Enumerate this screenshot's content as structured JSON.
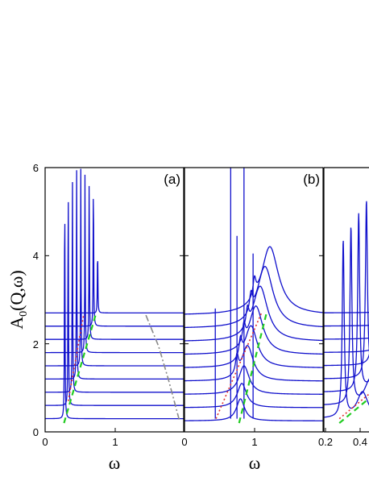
{
  "chart_data": {
    "type": "line",
    "y_axis": {
      "label_main": "A",
      "label_sub": "0",
      "label_rest": "(Q,ω)",
      "ylim": [
        0,
        6
      ],
      "ticks": [
        0,
        2,
        4,
        6
      ],
      "tick_labels": [
        "0",
        "2",
        "4",
        "6"
      ]
    },
    "panels": [
      {
        "label": "(a)",
        "xlabel": "ω",
        "xlim": [
          0,
          1.98
        ],
        "ticks": [
          0,
          1
        ],
        "tick_labels": [
          "0",
          "1"
        ],
        "series_color": "#1010cc",
        "offsets": [
          0.3,
          0.6,
          0.9,
          1.2,
          1.5,
          1.8,
          2.1,
          2.4,
          2.7
        ],
        "peak_positions": [
          0.28,
          0.33,
          0.39,
          0.45,
          0.51,
          0.57,
          0.63,
          0.69,
          0.75
        ],
        "peak_heights": [
          6,
          6,
          6,
          6,
          6,
          6,
          6,
          6,
          4.3
        ],
        "green_dashed": {
          "color": "#22cc22",
          "x": [
            0.27,
            0.72
          ],
          "y": [
            0.2,
            2.65
          ]
        },
        "red_dotted": {
          "color": "#e03030",
          "x": [
            0.33,
            0.55
          ],
          "y": [
            0.7,
            2.65
          ]
        },
        "gray_dashdot": {
          "color": "#888888",
          "x": [
            1.44,
            1.62,
            1.76,
            1.92
          ],
          "y": [
            2.65,
            1.95,
            1.2,
            0.25
          ]
        }
      },
      {
        "label": "(b)",
        "xlabel": "ω",
        "xlim": [
          0,
          1.98
        ],
        "ticks": [
          0,
          1
        ],
        "tick_labels": [
          "0",
          "1"
        ],
        "series_color": "#1010cc",
        "offsets": [
          0.3,
          0.6,
          0.9,
          1.2,
          1.5,
          1.8,
          2.1,
          2.4,
          2.7
        ],
        "peak_positions": [
          0.8,
          0.82,
          0.85,
          0.9,
          0.95,
          1.02,
          1.08,
          1.15,
          1.22
        ],
        "peak_amplitudes": [
          0.5,
          0.55,
          0.65,
          0.8,
          0.95,
          1.1,
          1.25,
          1.4,
          1.55
        ],
        "sharp_lines": [
          {
            "x": 0.44,
            "top": 2.8
          },
          {
            "x": 0.66,
            "top": 6
          },
          {
            "x": 0.75,
            "top": 4.45
          },
          {
            "x": 0.85,
            "top": 6
          },
          {
            "x": 0.98,
            "top": 4.05
          }
        ],
        "green_dashed": {
          "color": "#22cc22",
          "x": [
            0.78,
            1.18
          ],
          "y": [
            0.2,
            2.75
          ]
        },
        "red_dotted": {
          "color": "#e03030",
          "x": [
            0.45,
            1.1
          ],
          "y": [
            0.3,
            2.7
          ]
        }
      },
      {
        "label": "",
        "xlabel": "",
        "xlim": [
          0.2,
          0.5
        ],
        "ticks": [
          0.2,
          0.4
        ],
        "tick_labels": [
          "0.2",
          "0.4"
        ],
        "series_color": "#1010cc",
        "offsets": [
          0.3,
          0.6,
          0.9,
          1.2,
          1.5,
          1.8,
          2.1,
          2.4,
          2.7
        ],
        "peak_positions": [
          0.25,
          0.27,
          0.29,
          0.31,
          0.33,
          0.35,
          0.37,
          0.39,
          0.41
        ],
        "green_dashed": {
          "color": "#22cc22",
          "x": [
            0.24,
            0.46
          ],
          "y": [
            0.2,
            1.8
          ]
        },
        "red_dotted": {
          "color": "#e03030",
          "x": [
            0.24,
            0.46
          ],
          "y": [
            0.3,
            1.9
          ]
        }
      }
    ]
  }
}
